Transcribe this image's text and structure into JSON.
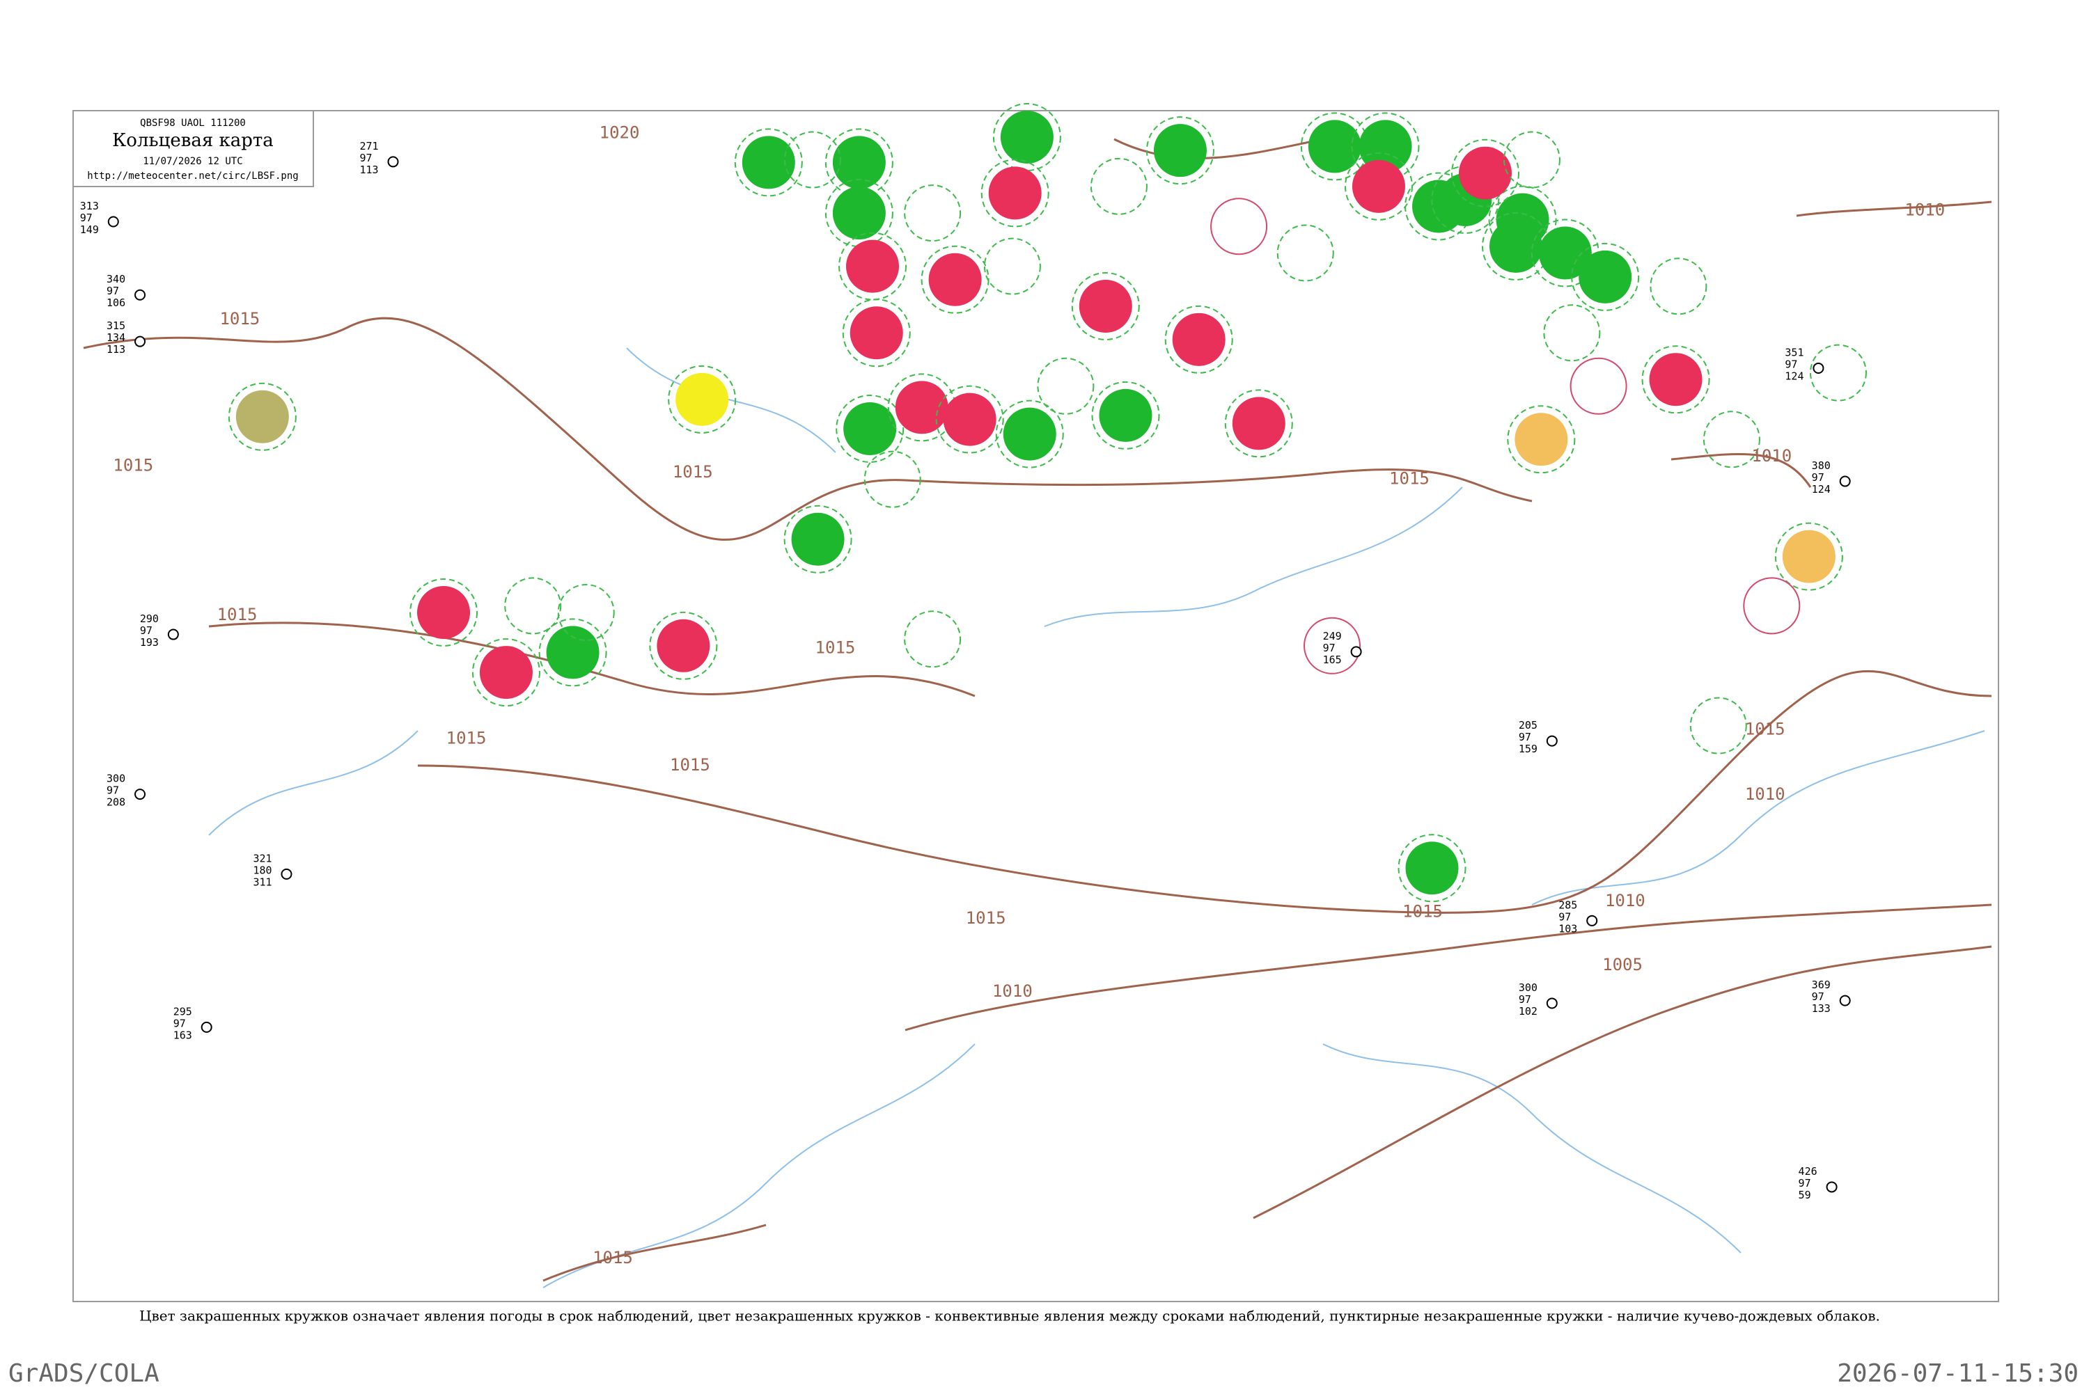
{
  "header": {
    "code": "QBSF98  UAOL  111200",
    "title": "Кольцевая карта",
    "time": "11/07/2026 12 UTC",
    "url": "http://meteocenter.net/circ/LBSF.png"
  },
  "isobars": [
    {
      "label": "1020"
    },
    {
      "label": "1015"
    },
    {
      "label": "1015"
    },
    {
      "label": "1015"
    },
    {
      "label": "1015"
    },
    {
      "label": "1015"
    },
    {
      "label": "1015"
    },
    {
      "label": "1015"
    },
    {
      "label": "1015"
    },
    {
      "label": "1015"
    },
    {
      "label": "1015"
    },
    {
      "label": "1015"
    },
    {
      "label": "1015"
    },
    {
      "label": "1010"
    },
    {
      "label": "1010"
    },
    {
      "label": "1010"
    },
    {
      "label": "1010"
    },
    {
      "label": "1010"
    },
    {
      "label": "1005"
    }
  ],
  "stations": [
    {
      "lines": [
        "271",
        "97",
        "113"
      ]
    },
    {
      "lines": [
        "340",
        "97",
        "106"
      ]
    },
    {
      "lines": [
        "315",
        "134",
        "113"
      ]
    },
    {
      "lines": [
        "313",
        "97",
        "149"
      ]
    },
    {
      "lines": [
        "290",
        "97",
        "193"
      ]
    },
    {
      "lines": [
        "300",
        "97",
        "208"
      ]
    },
    {
      "lines": [
        "321",
        "180",
        "311"
      ]
    },
    {
      "lines": [
        "295",
        "97",
        "163"
      ]
    },
    {
      "lines": [
        "380",
        "97",
        "124"
      ]
    },
    {
      "lines": [
        "351",
        "97",
        "124"
      ]
    },
    {
      "lines": [
        "369",
        "97",
        "133"
      ]
    },
    {
      "lines": [
        "426",
        "97",
        "59"
      ]
    },
    {
      "lines": [
        "285",
        "97",
        "103"
      ]
    },
    {
      "lines": [
        "300",
        "97",
        "102"
      ]
    },
    {
      "lines": [
        "249",
        "97",
        "165"
      ]
    },
    {
      "lines": [
        "205",
        "97",
        "159"
      ]
    }
  ],
  "caption": "Цвет закрашенных кружков означает явления погоды в срок наблюдений, цвет незакрашенных кружков - конвективные явления между сроками наблюдений, пунктирные незакрашенные кружки - наличие кучево-дождевых облаков.",
  "footer": {
    "left": "GrADS/COLA",
    "right": "2026-07-11-15:30"
  }
}
